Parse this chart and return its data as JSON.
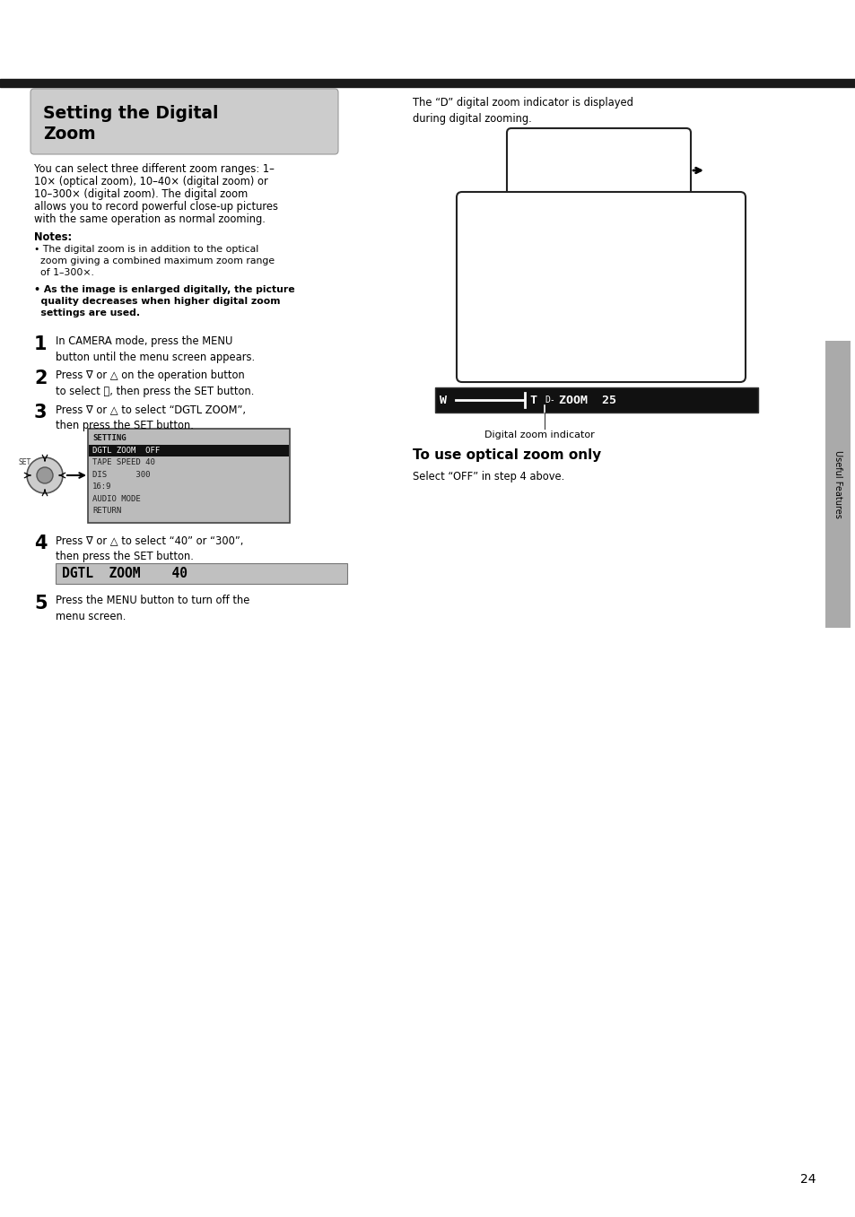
{
  "page_bg": "#ffffff",
  "top_bar_color": "#1a1a1a",
  "header_bg": "#cccccc",
  "intro_text_line1": "You can select three different zoom ranges: 1–",
  "intro_text_line2": "10× (optical zoom), 10–40× (digital zoom) or",
  "intro_text_line3": "10–300× (digital zoom). The digital zoom",
  "intro_text_line4": "allows you to record powerful close-up pictures",
  "intro_text_line5": "with the same operation as normal zooming.",
  "notes_label": "Notes:",
  "note1_line1": "• The digital zoom is in addition to the optical",
  "note1_line2": "  zoom giving a combined maximum zoom range",
  "note1_line3": "  of 1–300×.",
  "note2_line1": "• As the image is enlarged digitally, the picture",
  "note2_line2": "  quality decreases when higher digital zoom",
  "note2_line3": "  settings are used.",
  "step1_text": "In CAMERA mode, press the MENU\nbutton until the menu screen appears.",
  "step2_text": "Press ∇ or △ on the operation button\nto select ⓟ, then press the SET button.",
  "step3_text": "Press ∇ or △ to select “DGTL ZOOM”,\nthen press the SET button.",
  "step4_text": "Press ∇ or △ to select “40” or “300”,\nthen press the SET button.",
  "step5_text": "Press the MENU button to turn off the\nmenu screen.",
  "right_caption": "The “D” digital zoom indicator is displayed\nduring digital zooming.",
  "zoom_indicator_label": "Digital zoom indicator",
  "optical_zoom_title": "To use optical zoom only",
  "optical_zoom_text": "Select “OFF” in step 4 above.",
  "page_number": "24",
  "sidebar_label": "Useful Features",
  "dgtl_zoom_bar": "DGTL  ZOOM    40",
  "menu_lines": [
    "SETTING",
    "DGTL ZOOM  OFF",
    "TAPE SPEED 40",
    "DIS      300",
    "16:9",
    "AUDIO MODE",
    "RETURN"
  ],
  "menu_highlight_idx": 1
}
